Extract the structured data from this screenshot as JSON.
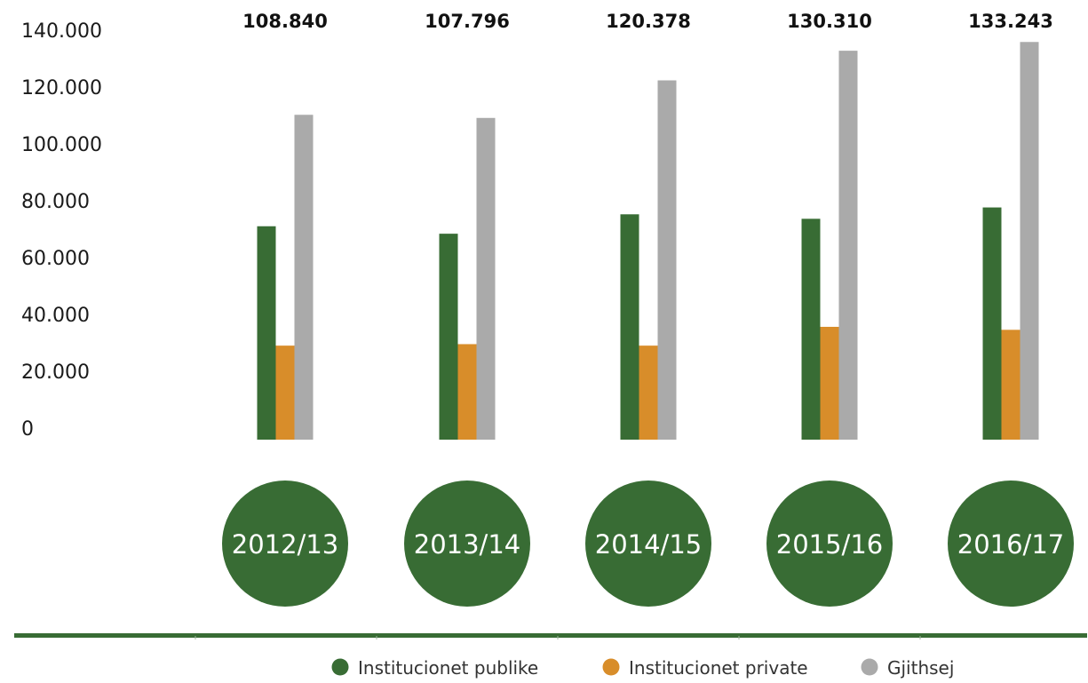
{
  "chart_data": {
    "type": "bar",
    "categories": [
      "2012/13",
      "2013/14",
      "2014/15",
      "2015/16",
      "2016/17"
    ],
    "series": [
      {
        "name": "Institucionet publike",
        "color": "#386c34",
        "values": [
          71500,
          69000,
          75500,
          74000,
          77800
        ]
      },
      {
        "name": "Institucionet private",
        "color": "#d88d2a",
        "values": [
          31500,
          32000,
          31500,
          37800,
          36800
        ]
      },
      {
        "name": "Gjithsej",
        "color": "#aaaaaa",
        "values": [
          108840,
          107796,
          120378,
          130310,
          133243
        ]
      }
    ],
    "total_labels": [
      "108.840",
      "107.796",
      "120.378",
      "130.310",
      "133.243"
    ],
    "y_tick_labels": [
      "0",
      "20.000",
      "40.000",
      "60.000",
      "80.000",
      "100.000",
      "120.000",
      "140.000"
    ],
    "ylim": [
      0,
      140000
    ],
    "title": "",
    "xlabel": "",
    "ylabel": "",
    "grid": false,
    "legend_position": "bottom-right",
    "colors": {
      "category_circle": "#386c34",
      "baseline": "#386c34"
    }
  }
}
